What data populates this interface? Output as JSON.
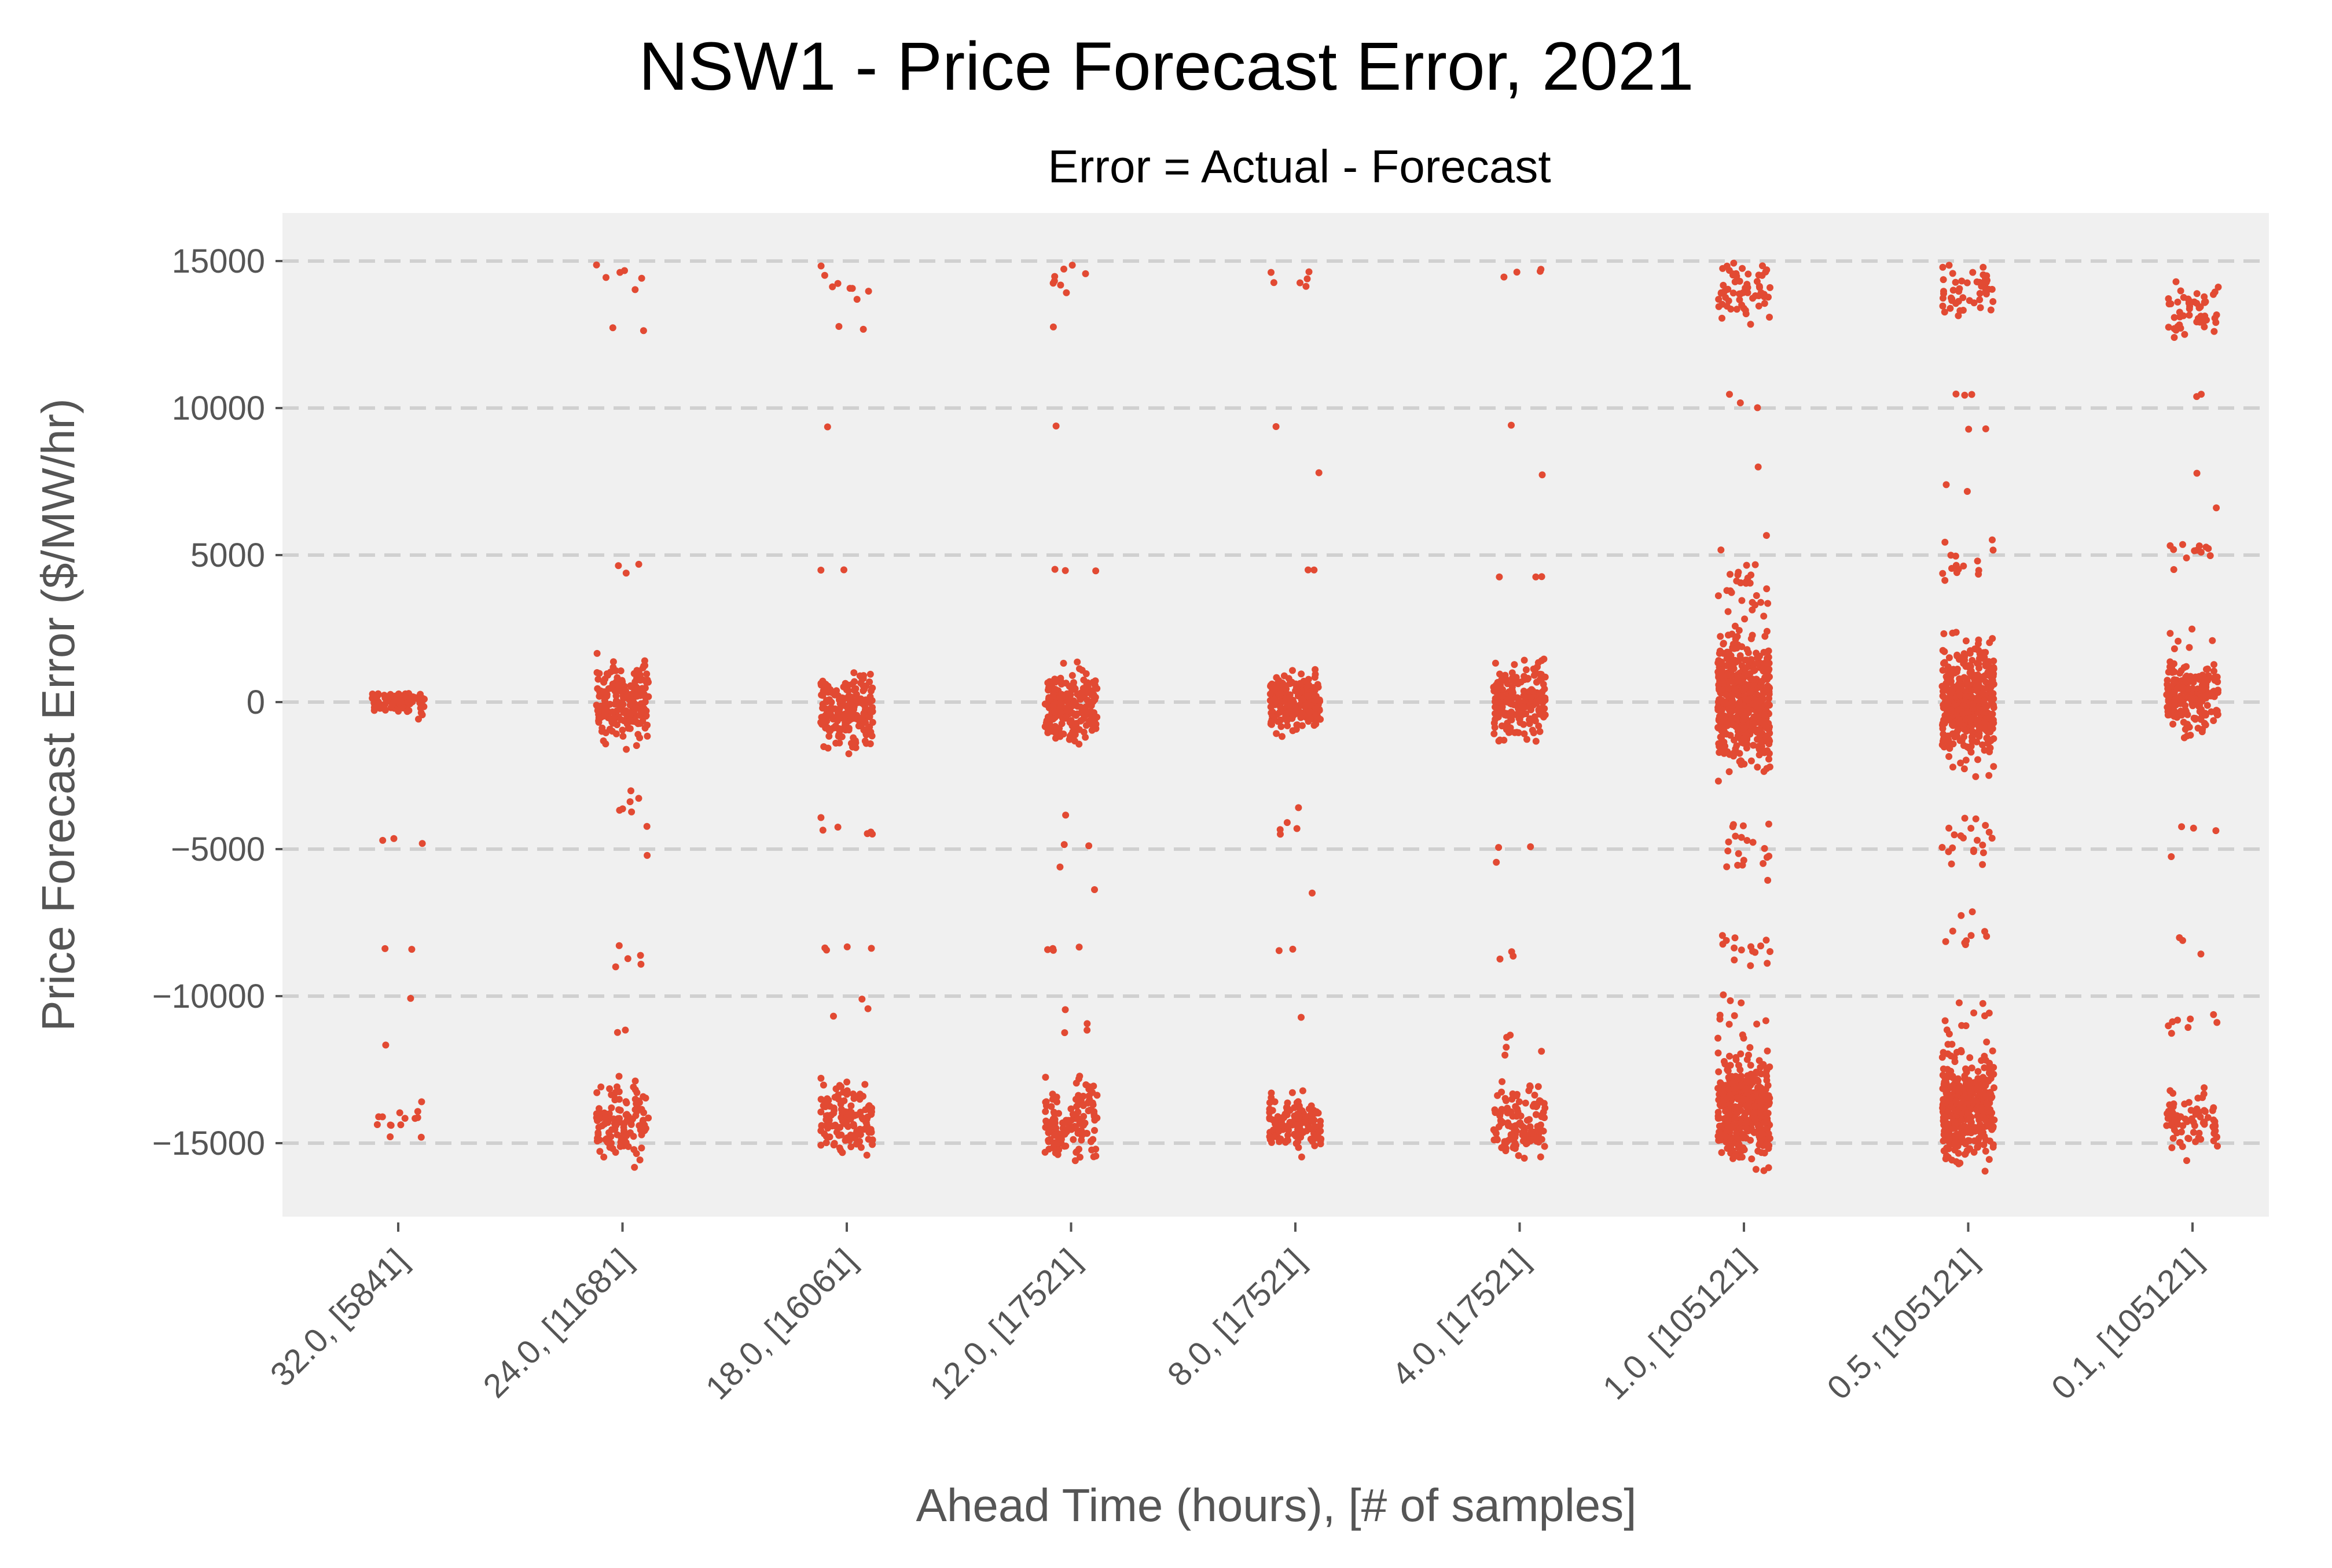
{
  "chart_data": {
    "type": "scatter",
    "title": "NSW1 - Price Forecast Error, 2021",
    "subtitle": "Error = Actual - Forecast",
    "xlabel": "Ahead Time (hours), [# of samples]",
    "ylabel": "Price Forecast Error ($/MW/hr)",
    "categories": [
      "32.0, [5841]",
      "24.0, [11681]",
      "18.0, [16061]",
      "12.0, [17521]",
      "8.0, [17521]",
      "4.0, [17521]",
      "1.0, [105121]",
      "0.5, [105121]",
      "0.1, [105121]"
    ],
    "ylim": [
      -18000,
      16500
    ],
    "yticks": [
      15000,
      10000,
      5000,
      0,
      -5000,
      -10000,
      -15000
    ],
    "ytick_labels": [
      "15000",
      "10000",
      "5000",
      "0",
      "−5000",
      "−10000",
      "−15000"
    ],
    "grid": true,
    "jitter": "strip",
    "colors": {
      "points": "#E24A33",
      "plot_bg": "#F0F0F0",
      "grid": "#D0D0D0",
      "text": "#555555"
    },
    "series": [
      {
        "clusters": [
          {
            "center": 0,
            "spread": 500,
            "count": 90
          },
          {
            "center": -4700,
            "spread": 150,
            "count": 3
          },
          {
            "center": -8400,
            "spread": 80,
            "count": 2
          },
          {
            "center": -10000,
            "spread": 100,
            "count": 1
          },
          {
            "center": -11700,
            "spread": 100,
            "count": 1
          },
          {
            "center": -14200,
            "spread": 700,
            "count": 14
          }
        ],
        "range": [
          -15000,
          300
        ]
      },
      {
        "clusters": [
          {
            "center": 14400,
            "spread": 700,
            "count": 6
          },
          {
            "center": 12800,
            "spread": 150,
            "count": 2
          },
          {
            "center": 4600,
            "spread": 600,
            "count": 3
          },
          {
            "center": 0,
            "spread": 1200,
            "count": 200
          },
          {
            "center": -3500,
            "spread": 1500,
            "count": 8
          },
          {
            "center": -8600,
            "spread": 700,
            "count": 5
          },
          {
            "center": -11300,
            "spread": 300,
            "count": 2
          },
          {
            "center": -14300,
            "spread": 1200,
            "count": 120
          }
        ],
        "range": [
          -16000,
          15000
        ]
      },
      {
        "clusters": [
          {
            "center": 14300,
            "spread": 800,
            "count": 8
          },
          {
            "center": 12700,
            "spread": 100,
            "count": 2
          },
          {
            "center": 9400,
            "spread": 50,
            "count": 1
          },
          {
            "center": 4500,
            "spread": 60,
            "count": 2
          },
          {
            "center": -300,
            "spread": 1200,
            "count": 200
          },
          {
            "center": -4300,
            "spread": 600,
            "count": 6
          },
          {
            "center": -8400,
            "spread": 100,
            "count": 4
          },
          {
            "center": -10500,
            "spread": 500,
            "count": 3
          },
          {
            "center": -14300,
            "spread": 1200,
            "count": 130
          }
        ],
        "range": [
          -16000,
          15000
        ]
      },
      {
        "clusters": [
          {
            "center": 14300,
            "spread": 800,
            "count": 8
          },
          {
            "center": 12700,
            "spread": 100,
            "count": 1
          },
          {
            "center": 9400,
            "spread": 50,
            "count": 1
          },
          {
            "center": 4500,
            "spread": 60,
            "count": 3
          },
          {
            "center": -200,
            "spread": 1200,
            "count": 200
          },
          {
            "center": -4400,
            "spread": 800,
            "count": 3
          },
          {
            "center": -6000,
            "spread": 500,
            "count": 2
          },
          {
            "center": -8400,
            "spread": 100,
            "count": 4
          },
          {
            "center": -11000,
            "spread": 700,
            "count": 4
          },
          {
            "center": -14200,
            "spread": 1300,
            "count": 130
          }
        ],
        "range": [
          -16000,
          15000
        ]
      },
      {
        "clusters": [
          {
            "center": 14300,
            "spread": 800,
            "count": 6
          },
          {
            "center": 9400,
            "spread": 50,
            "count": 1
          },
          {
            "center": 7800,
            "spread": 50,
            "count": 1
          },
          {
            "center": 4500,
            "spread": 60,
            "count": 2
          },
          {
            "center": 0,
            "spread": 1000,
            "count": 200
          },
          {
            "center": -3900,
            "spread": 900,
            "count": 5
          },
          {
            "center": -6500,
            "spread": 100,
            "count": 1
          },
          {
            "center": -8400,
            "spread": 100,
            "count": 2
          },
          {
            "center": -10800,
            "spread": 100,
            "count": 1
          },
          {
            "center": -14300,
            "spread": 900,
            "count": 130
          }
        ],
        "range": [
          -16000,
          15000
        ]
      },
      {
        "clusters": [
          {
            "center": 14400,
            "spread": 700,
            "count": 4
          },
          {
            "center": 9400,
            "spread": 50,
            "count": 1
          },
          {
            "center": 7700,
            "spread": 50,
            "count": 1
          },
          {
            "center": 4200,
            "spread": 500,
            "count": 3
          },
          {
            "center": 0,
            "spread": 1200,
            "count": 200
          },
          {
            "center": -4400,
            "spread": 800,
            "count": 3
          },
          {
            "center": -8500,
            "spread": 300,
            "count": 3
          },
          {
            "center": -11600,
            "spread": 900,
            "count": 5
          },
          {
            "center": -14200,
            "spread": 1200,
            "count": 120
          }
        ],
        "range": [
          -16000,
          15000
        ]
      },
      {
        "clusters": [
          {
            "center": 14000,
            "spread": 1000,
            "count": 60
          },
          {
            "center": 10300,
            "spread": 400,
            "count": 3
          },
          {
            "center": 8000,
            "spread": 50,
            "count": 1
          },
          {
            "center": 3800,
            "spread": 1400,
            "count": 30
          },
          {
            "center": 0,
            "spread": 2000,
            "count": 500
          },
          {
            "center": -5000,
            "spread": 1000,
            "count": 20
          },
          {
            "center": -8300,
            "spread": 700,
            "count": 15
          },
          {
            "center": -10600,
            "spread": 900,
            "count": 10
          },
          {
            "center": -13800,
            "spread": 1800,
            "count": 400
          }
        ],
        "range": [
          -16000,
          15000
        ]
      },
      {
        "clusters": [
          {
            "center": 14000,
            "spread": 1000,
            "count": 50
          },
          {
            "center": 10500,
            "spread": 300,
            "count": 3
          },
          {
            "center": 9300,
            "spread": 50,
            "count": 2
          },
          {
            "center": 7500,
            "spread": 300,
            "count": 2
          },
          {
            "center": 4700,
            "spread": 900,
            "count": 15
          },
          {
            "center": 0,
            "spread": 1800,
            "count": 400
          },
          {
            "center": -4800,
            "spread": 1000,
            "count": 20
          },
          {
            "center": -7800,
            "spread": 900,
            "count": 10
          },
          {
            "center": -10600,
            "spread": 800,
            "count": 10
          },
          {
            "center": -13800,
            "spread": 1800,
            "count": 350
          }
        ],
        "range": [
          -16000,
          15000
        ]
      },
      {
        "clusters": [
          {
            "center": 13300,
            "spread": 1000,
            "count": 50
          },
          {
            "center": 10500,
            "spread": 300,
            "count": 2
          },
          {
            "center": 7800,
            "spread": 50,
            "count": 1
          },
          {
            "center": 6600,
            "spread": 50,
            "count": 1
          },
          {
            "center": 5000,
            "spread": 500,
            "count": 12
          },
          {
            "center": 2000,
            "spread": 500,
            "count": 6
          },
          {
            "center": 200,
            "spread": 1100,
            "count": 200
          },
          {
            "center": -4500,
            "spread": 1000,
            "count": 4
          },
          {
            "center": -8200,
            "spread": 400,
            "count": 3
          },
          {
            "center": -11000,
            "spread": 700,
            "count": 8
          },
          {
            "center": -14200,
            "spread": 1100,
            "count": 80
          }
        ],
        "range": [
          -16000,
          15000
        ]
      }
    ]
  }
}
